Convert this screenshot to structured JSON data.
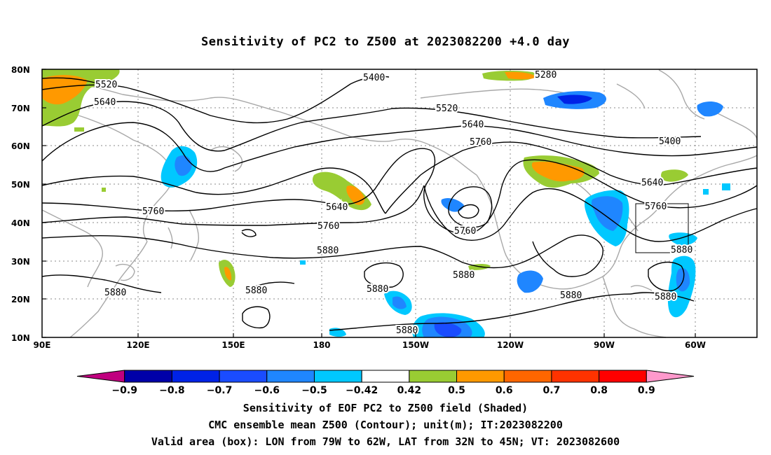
{
  "title": "Sensitivity of PC2 to Z500 at 2023082200 +4.0 day",
  "lat_labels": [
    "80N",
    "70N",
    "60N",
    "50N",
    "40N",
    "30N",
    "20N",
    "10N"
  ],
  "lon_labels": [
    "90E",
    "120E",
    "150E",
    "180",
    "150W",
    "120W",
    "90W",
    "60W"
  ],
  "contour_labels": [
    "5280",
    "5400",
    "5400",
    "5520",
    "5520",
    "5640",
    "5640",
    "5640",
    "5640",
    "5760",
    "5760",
    "5760",
    "5760",
    "5760",
    "5880",
    "5880",
    "5880",
    "5880",
    "5880",
    "5880",
    "5880",
    "5880"
  ],
  "colorbar": {
    "labels": [
      "-0.9",
      "-0.8",
      "-0.7",
      "-0.6",
      "-0.5",
      "-0.42",
      "0.42",
      "0.5",
      "0.6",
      "0.7",
      "0.8",
      "0.9"
    ],
    "colors": [
      "#c0007f",
      "#0000a8",
      "#0022e6",
      "#1a4cff",
      "#1f86ff",
      "#00c8ff",
      "#ffffff",
      "#99cc33",
      "#ff9900",
      "#ff6600",
      "#ff3300",
      "#ff0000",
      "#ff99cc"
    ]
  },
  "captions": {
    "line1": "Sensitivity of EOF PC2 to Z500 field (Shaded)",
    "line2": "CMC ensemble mean Z500 (Contour); unit(m); IT:2023082200",
    "line3": "Valid area (box): LON from 79W to 62W, LAT from 32N to 45N; VT: 2023082600"
  }
}
